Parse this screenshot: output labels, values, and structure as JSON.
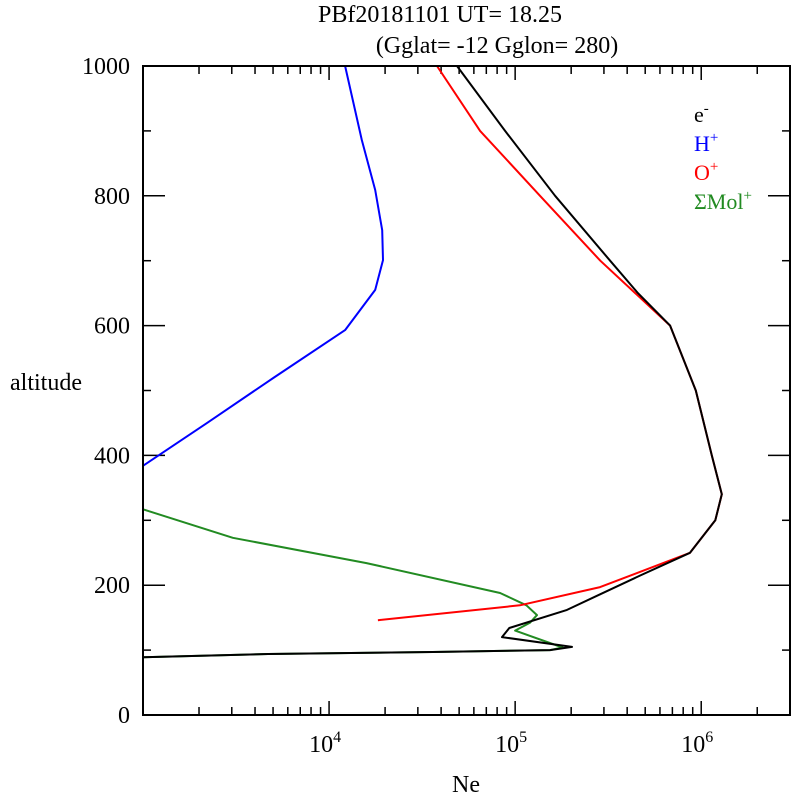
{
  "chart_data": {
    "type": "line",
    "title_line1": "PBf20181101   UT=  18.25",
    "title_line2": "(Gglat= -12   Gglon=  280)",
    "xlabel": "Ne",
    "ylabel": "altitude",
    "xscale": "log",
    "xlim": [
      1000,
      3000000
    ],
    "ylim": [
      0,
      1000
    ],
    "x_ticks": [
      {
        "base": "10",
        "exp": "4",
        "value": 10000
      },
      {
        "base": "10",
        "exp": "5",
        "value": 100000
      },
      {
        "base": "10",
        "exp": "6",
        "value": 1000000
      }
    ],
    "y_ticks": [
      "0",
      "200",
      "400",
      "600",
      "800",
      "1000"
    ],
    "legend_placement": "top-right",
    "series": [
      {
        "name": "ΣMol",
        "sup": "+",
        "color": "#228b22",
        "points": [
          [
            1000,
            317
          ],
          [
            3040,
            273
          ],
          [
            15900,
            234
          ],
          [
            83000,
            188
          ],
          [
            115000,
            169
          ],
          [
            131000,
            154
          ],
          [
            120000,
            142
          ],
          [
            100000,
            130
          ],
          [
            180000,
            104
          ],
          [
            154000,
            100
          ],
          [
            36000,
            97
          ],
          [
            4700,
            94
          ],
          [
            1000,
            89
          ]
        ]
      },
      {
        "name": "H",
        "sup": "+",
        "color": "#0000ff",
        "points": [
          [
            1000,
            384
          ],
          [
            2210,
            450
          ],
          [
            5060,
            520
          ],
          [
            12200,
            593
          ],
          [
            17700,
            655
          ],
          [
            19500,
            701
          ],
          [
            19300,
            747
          ],
          [
            17700,
            809
          ],
          [
            15000,
            886
          ],
          [
            12200,
            1000
          ]
        ]
      },
      {
        "name": "O",
        "sup": "+",
        "color": "#ff0000",
        "points": [
          [
            18300,
            146
          ],
          [
            106000,
            169
          ],
          [
            286000,
            197
          ],
          [
            870000,
            250
          ],
          [
            1190000,
            300
          ],
          [
            1290000,
            340
          ],
          [
            1140000,
            400
          ],
          [
            935000,
            500
          ],
          [
            680000,
            600
          ],
          [
            442000,
            650
          ],
          [
            287000,
            700
          ],
          [
            136000,
            800
          ],
          [
            64800,
            900
          ],
          [
            38000,
            1000
          ]
        ]
      },
      {
        "name": "e",
        "sup": "-",
        "color": "#000000",
        "points": [
          [
            1000,
            89
          ],
          [
            4700,
            94
          ],
          [
            36000,
            97
          ],
          [
            154000,
            100
          ],
          [
            202000,
            105
          ],
          [
            85000,
            120
          ],
          [
            93000,
            134
          ],
          [
            190000,
            162
          ],
          [
            286000,
            186
          ],
          [
            470000,
            215
          ],
          [
            870000,
            250
          ],
          [
            1190000,
            300
          ],
          [
            1290000,
            340
          ],
          [
            1140000,
            400
          ],
          [
            935000,
            500
          ],
          [
            680000,
            600
          ],
          [
            457000,
            650
          ],
          [
            324000,
            700
          ],
          [
            164000,
            800
          ],
          [
            88300,
            900
          ],
          [
            48700,
            1000
          ]
        ]
      }
    ]
  }
}
